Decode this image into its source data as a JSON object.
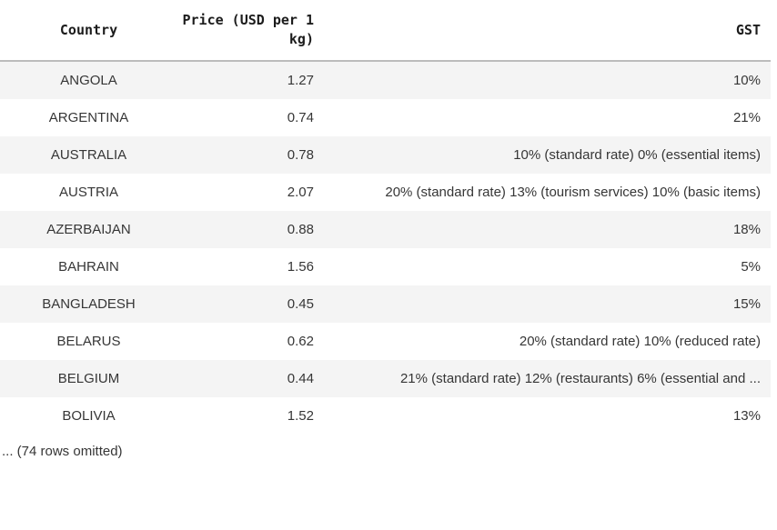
{
  "chart_data": {
    "type": "table",
    "title": "",
    "columns": [
      "Country",
      "Price (USD per 1 kg)",
      "GST"
    ],
    "headers": {
      "country": "Country",
      "price": "Price (USD per 1 kg)",
      "gst": "GST"
    },
    "rows": [
      {
        "country": "ANGOLA",
        "price": "1.27",
        "gst": "10%"
      },
      {
        "country": "ARGENTINA",
        "price": "0.74",
        "gst": "21%"
      },
      {
        "country": "AUSTRALIA",
        "price": "0.78",
        "gst": "10% (standard rate) 0% (essential items)"
      },
      {
        "country": "AUSTRIA",
        "price": "2.07",
        "gst": "20% (standard rate) 13% (tourism services) 10% (basic items)"
      },
      {
        "country": "AZERBAIJAN",
        "price": "0.88",
        "gst": "18%"
      },
      {
        "country": "BAHRAIN",
        "price": "1.56",
        "gst": "5%"
      },
      {
        "country": "BANGLADESH",
        "price": "0.45",
        "gst": "15%"
      },
      {
        "country": "BELARUS",
        "price": "0.62",
        "gst": "20% (standard rate) 10% (reduced rate)"
      },
      {
        "country": "BELGIUM",
        "price": "0.44",
        "gst": "21% (standard rate) 12% (restaurants) 6% (essential and ..."
      },
      {
        "country": "BOLIVIA",
        "price": "1.52",
        "gst": "13%"
      }
    ],
    "footer_note": "... (74 rows omitted)",
    "layout": {
      "stripe_color": "#f4f4f4",
      "header_border_color": "#bcbcbc",
      "country_align": "center",
      "price_align": "right",
      "gst_align": "right"
    }
  }
}
